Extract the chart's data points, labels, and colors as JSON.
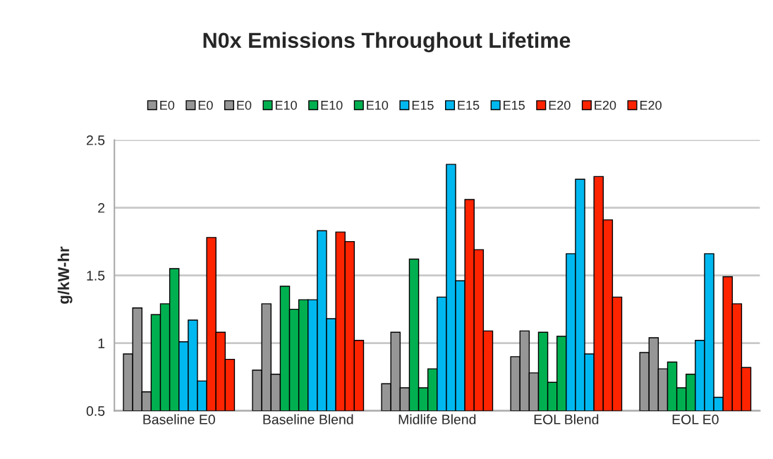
{
  "chart_data": {
    "type": "bar",
    "title": "N0x Emissions Throughout Lifetime",
    "ylabel": "g/kW-hr",
    "categories": [
      "Baseline E0",
      "Baseline Blend",
      "Midlife Blend",
      "EOL Blend",
      "EOL E0"
    ],
    "series": [
      {
        "name": "E0",
        "color": "#969696",
        "values": [
          0.92,
          0.8,
          0.7,
          0.9,
          0.93
        ]
      },
      {
        "name": "E0",
        "color": "#969696",
        "values": [
          1.26,
          1.29,
          1.08,
          1.09,
          1.04
        ]
      },
      {
        "name": "E0",
        "color": "#969696",
        "values": [
          0.64,
          0.77,
          0.67,
          0.78,
          0.81
        ]
      },
      {
        "name": "E10",
        "color": "#00b050",
        "values": [
          1.21,
          1.42,
          1.62,
          1.08,
          0.86
        ]
      },
      {
        "name": "E10",
        "color": "#00b050",
        "values": [
          1.29,
          1.25,
          0.67,
          0.71,
          0.67
        ]
      },
      {
        "name": "E10",
        "color": "#00b050",
        "values": [
          1.55,
          1.32,
          0.81,
          1.05,
          0.77
        ]
      },
      {
        "name": "E15",
        "color": "#00b8f0",
        "values": [
          1.01,
          1.32,
          1.34,
          1.66,
          1.02
        ]
      },
      {
        "name": "E15",
        "color": "#00b8f0",
        "values": [
          1.17,
          1.83,
          2.32,
          2.21,
          1.66
        ]
      },
      {
        "name": "E15",
        "color": "#00b8f0",
        "values": [
          0.72,
          1.18,
          1.46,
          0.92,
          0.6
        ]
      },
      {
        "name": "E20",
        "color": "#ff2400",
        "values": [
          1.78,
          1.82,
          2.06,
          2.23,
          1.49
        ]
      },
      {
        "name": "E20",
        "color": "#ff2400",
        "values": [
          1.08,
          1.75,
          1.69,
          1.91,
          1.29
        ]
      },
      {
        "name": "E20",
        "color": "#ff2400",
        "values": [
          0.88,
          1.02,
          1.09,
          1.34,
          0.82
        ]
      }
    ],
    "ylim": [
      0.5,
      2.5
    ],
    "yticks": [
      {
        "value": 0.5,
        "label": "0.5"
      },
      1,
      {
        "value": 1.5,
        "label": "1.5"
      },
      2,
      {
        "value": 2.5,
        "label": "2.5"
      }
    ],
    "grid": "y",
    "legend": "top"
  }
}
